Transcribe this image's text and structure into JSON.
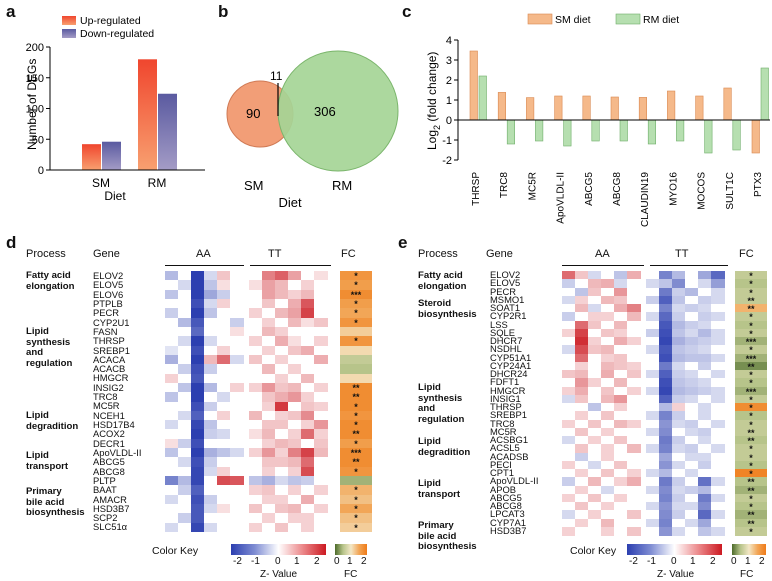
{
  "panel_labels": {
    "a": "a",
    "b": "b",
    "c": "c",
    "d": "d",
    "e": "e"
  },
  "colors": {
    "up": "#e8442a",
    "down": "#6a68a8",
    "sm": "#f5b98a",
    "rm": "#b6dfb0",
    "sm_edge": "#d98850",
    "rm_edge": "#6fae6a",
    "venn_sm": "#f29e77",
    "venn_rm": "#9fd08e"
  },
  "chart_data": [
    {
      "type": "bar",
      "title": "",
      "categories": [
        "SM",
        "RM"
      ],
      "series": [
        {
          "name": "Up-regulated",
          "values": [
            42,
            180
          ]
        },
        {
          "name": "Down-regulated",
          "values": [
            46,
            124
          ]
        }
      ],
      "xlabel": "Diet",
      "ylabel": "Number of DEGs",
      "ylim": [
        0,
        200
      ],
      "yticks": [
        0,
        50,
        100,
        150,
        200
      ],
      "legend": "top-left"
    },
    {
      "type": "bar",
      "title": "",
      "categories": [
        "THRSP",
        "TRC8",
        "MC5R",
        "ApoVLDL-II",
        "ABCG5",
        "ABCG8",
        "CLAUDIN19",
        "MYO16",
        "MOCOS",
        "SULT1C",
        "PTX3"
      ],
      "series": [
        {
          "name": "SM diet",
          "values": [
            3.45,
            1.38,
            1.12,
            1.2,
            1.2,
            1.15,
            1.13,
            1.45,
            1.2,
            1.6,
            -1.65
          ]
        },
        {
          "name": "RM diet",
          "values": [
            2.2,
            -1.2,
            -1.05,
            -1.3,
            -1.05,
            -1.05,
            -1.2,
            -1.05,
            -1.65,
            -1.5,
            2.6
          ]
        }
      ],
      "xlabel": "",
      "ylabel": "Log2 (fold change)",
      "ylim": [
        -2,
        4
      ],
      "yticks": [
        -2,
        -1,
        0,
        1,
        2,
        3,
        4
      ],
      "legend": "top"
    }
  ],
  "a": {
    "ylabel": "Number of DEGs",
    "xlabel": "Diet",
    "legend_up": "Up-regulated",
    "legend_down": "Down-regulated",
    "ticks": [
      "0",
      "50",
      "100",
      "150",
      "200"
    ],
    "cats": [
      "SM",
      "RM"
    ]
  },
  "b": {
    "sm_only": "90",
    "overlap": "11",
    "rm_only": "306",
    "sm_label": "SM",
    "rm_label": "RM",
    "xlabel": "Diet"
  },
  "c": {
    "legend_sm": "SM diet",
    "legend_rm": "RM diet",
    "ylabel_main": "Log",
    "ylabel_sub": "2",
    "ylabel_rest": " (fold change)",
    "ticks": [
      "4",
      "3",
      "2",
      "1",
      "0",
      "-1",
      "-2"
    ],
    "genes": [
      "THRSP",
      "TRC8",
      "MC5R",
      "ApoVLDL-II",
      "ABCG5",
      "ABCG8",
      "CLAUDIN19",
      "MYO16",
      "MOCOS",
      "SULT1C",
      "PTX3"
    ]
  },
  "d": {
    "hdr_process": "Process",
    "hdr_gene": "Gene",
    "hdr_aa": "AA",
    "hdr_tt": "TT",
    "hdr_fc": "FC",
    "genes": [
      "ELOV2",
      "ELOV5",
      "ELOV6",
      "PTPLB",
      "PECR",
      "CYP2U1",
      "FASN",
      "THRSP",
      "SREBP1",
      "ACACA",
      "ACACB",
      "HMGCR",
      "INSIG2",
      "TRC8",
      "MC5R",
      "NCEH1",
      "HSD17B4",
      "ACOX2",
      "DECR1",
      "ApoVLDL-II",
      "ABCG5",
      "ABCG8",
      "PLTP",
      "BAAT",
      "AMACR",
      "HSD3B7",
      "SCP2",
      "SLC51α"
    ],
    "stars": [
      "*",
      "*",
      "***",
      "*",
      "*",
      "*",
      "",
      "*",
      "",
      "",
      "",
      "",
      "**",
      "**",
      "*",
      "*",
      "*",
      "**",
      "*",
      "***",
      "**",
      "*",
      "",
      "*",
      "*",
      "*",
      "*",
      "*"
    ],
    "processes": [
      "Fatty acid elongation",
      "Lipid synthesis and regulation",
      "Lipid degradition",
      "Lipid transport",
      "Primary bile acid biosynthesis"
    ],
    "proc_lines": [
      [
        "Fatty acid",
        "elongation"
      ],
      [
        "Lipid",
        "synthesis",
        "and",
        "regulation"
      ],
      [
        "Lipid",
        "degradition"
      ],
      [
        "Lipid",
        "transport"
      ],
      [
        "Primary",
        "bile acid",
        "biosynthesis"
      ]
    ],
    "colorkey_label": "Color Key",
    "zticks": [
      "-2",
      "-1",
      "0",
      "1",
      "2"
    ],
    "zlabel": "Z- Value",
    "fc_label": "FC",
    "fcticks": [
      "0",
      "1",
      "2"
    ]
  },
  "e": {
    "hdr_process": "Process",
    "hdr_gene": "Gene",
    "hdr_aa": "AA",
    "hdr_tt": "TT",
    "hdr_fc": "FC",
    "genes": [
      "ELOV2",
      "ELOV5",
      "PECR",
      "MSMO1",
      "SOAT1",
      "CYP2R1",
      "LSS",
      "SQLE",
      "DHCR7",
      "NSDHL",
      "CYP51A1",
      "CYP24A1",
      "DHCR24",
      "FDFT1",
      "HMGCR",
      "INSIG1",
      "THRSP",
      "SREBP1",
      "TRC8",
      "MC5R",
      "ACSBG1",
      "ACSL5",
      "ACADSB",
      "PECI",
      "CPT1",
      "ApoVLDL-II",
      "APOB",
      "ABCG5",
      "ABCG8",
      "LPCAT3",
      "CYP7A1",
      "HSD3B7"
    ],
    "stars": [
      "*",
      "*",
      "*",
      "**",
      "**",
      "*",
      "*",
      "*",
      "***",
      "*",
      "***",
      "**",
      "*",
      "*",
      "***",
      "*",
      "*",
      "*",
      "*",
      "**",
      "**",
      "*",
      "*",
      "*",
      "*",
      "**",
      "**",
      "*",
      "*",
      "**",
      "**",
      "*"
    ],
    "processes": [
      "Fatty acid elongation",
      "Steroid biosynthesis",
      "Lipid synthesis and regulation",
      "Lipid degradition",
      "Lipid transport",
      "Primary bile acid biosynthesis"
    ],
    "proc_lines": [
      [
        "Fatty acid",
        "elongation"
      ],
      [
        "Steroid",
        "biosynthesis"
      ],
      [
        "Lipid",
        "synthesis",
        "and",
        "regulation"
      ],
      [
        "Lipid",
        "degradition"
      ],
      [
        "Lipid",
        "transport"
      ],
      [
        "Primary",
        "bile acid",
        "biosynthesis"
      ]
    ],
    "colorkey_label": "Color Key",
    "zticks": [
      "-2",
      "-1",
      "0",
      "1",
      "2"
    ],
    "zlabel": "Z- Value",
    "fc_label": "FC",
    "fcticks": [
      "0",
      "1",
      "2"
    ]
  },
  "heatmap_d": {
    "aa": [
      [
        -0.6,
        0,
        -2,
        -0.3,
        0.4,
        0
      ],
      [
        0,
        -0.3,
        -2,
        -0.5,
        0.2,
        0
      ],
      [
        -0.5,
        0,
        -2,
        -0.8,
        -0.4,
        0
      ],
      [
        0,
        0,
        -1.8,
        -0.3,
        0.3,
        0
      ],
      [
        -0.4,
        0,
        -2,
        -0.5,
        0,
        0
      ],
      [
        0,
        -0.6,
        -1.7,
        0,
        0,
        -0.4
      ],
      [
        0,
        0,
        -1.5,
        0,
        0,
        0.2
      ],
      [
        0,
        -0.3,
        -2,
        -0.3,
        0,
        0
      ],
      [
        -0.2,
        0,
        -1.8,
        0,
        0.3,
        0
      ],
      [
        -0.7,
        0,
        -2,
        0.5,
        1.2,
        -0.3
      ],
      [
        0,
        -0.4,
        -1.8,
        -0.4,
        0,
        0
      ],
      [
        0.3,
        0,
        -1.7,
        0,
        0,
        0
      ],
      [
        0,
        -0.5,
        -2,
        -0.6,
        0,
        0.3
      ],
      [
        -0.5,
        0,
        -2,
        0,
        -0.3,
        0
      ],
      [
        0,
        0,
        -1.8,
        -0.4,
        0,
        0
      ],
      [
        0,
        -0.3,
        -1.6,
        0,
        0.3,
        0
      ],
      [
        -0.3,
        0,
        -1.9,
        -0.5,
        0,
        0
      ],
      [
        0,
        0,
        -2,
        -0.4,
        -0.3,
        0
      ],
      [
        0.2,
        -0.4,
        -1.8,
        0,
        0,
        0
      ],
      [
        -0.5,
        0,
        -2,
        -0.7,
        -0.5,
        -0.3
      ],
      [
        0,
        -0.3,
        -1.8,
        -0.4,
        0,
        0
      ],
      [
        0,
        0,
        -1.9,
        -0.3,
        0.3,
        0
      ],
      [
        -1.2,
        -0.6,
        -1.9,
        0,
        1.5,
        1.4
      ],
      [
        0,
        -0.4,
        -1.6,
        0,
        0,
        0
      ],
      [
        -0.3,
        0,
        -1.8,
        -0.4,
        0,
        0
      ],
      [
        0,
        0,
        -1.7,
        -0.3,
        0.2,
        0
      ],
      [
        0,
        -0.4,
        -1.7,
        0,
        0,
        0
      ],
      [
        -0.3,
        0,
        -1.9,
        -0.3,
        0,
        0
      ]
    ],
    "tt": [
      [
        0,
        1,
        1.3,
        0.7,
        0,
        0.2
      ],
      [
        0.2,
        0.7,
        0.5,
        0,
        0.3,
        0
      ],
      [
        0,
        0.7,
        0.5,
        0.3,
        0.5,
        0
      ],
      [
        0,
        0.4,
        0,
        0.6,
        1.4,
        0
      ],
      [
        0.3,
        0,
        0.5,
        0.7,
        1.6,
        0
      ],
      [
        0,
        0.3,
        0,
        0.5,
        0.2,
        0.4
      ],
      [
        0,
        0.5,
        0.3,
        0,
        0,
        0
      ],
      [
        0.3,
        0,
        0.6,
        0.2,
        0,
        0.3
      ],
      [
        0,
        0.3,
        0,
        0.4,
        0.6,
        0
      ],
      [
        0.4,
        0,
        0.3,
        0,
        0,
        0.6
      ],
      [
        0,
        0.5,
        0,
        0.3,
        0,
        0
      ],
      [
        0,
        0,
        0.3,
        0,
        0.5,
        0
      ],
      [
        0.3,
        0.8,
        0.4,
        0.5,
        0,
        0.3
      ],
      [
        0,
        0.4,
        0.6,
        0.8,
        0.3,
        0
      ],
      [
        0,
        0.3,
        1.7,
        0,
        0.4,
        0.3
      ],
      [
        0.5,
        0,
        0.3,
        0.4,
        0.9,
        0
      ],
      [
        0,
        0.4,
        0.4,
        0,
        0.3,
        0.8
      ],
      [
        0.2,
        0.5,
        0,
        0.3,
        1.2,
        0.3
      ],
      [
        0,
        0.3,
        0.5,
        0.4,
        0,
        0.4
      ],
      [
        0.3,
        0.8,
        0.3,
        1,
        1.6,
        0.5
      ],
      [
        0,
        0.4,
        0.4,
        0.5,
        1.2,
        0
      ],
      [
        0,
        0.3,
        0,
        0.3,
        1.5,
        0
      ],
      [
        -0.5,
        -0.7,
        -0.3,
        -0.5,
        -0.4,
        0
      ],
      [
        0.3,
        0.4,
        0,
        0.3,
        0,
        0.3
      ],
      [
        0,
        0.3,
        0.3,
        0,
        0.6,
        0
      ],
      [
        0.4,
        0,
        0.4,
        0.5,
        0,
        0.3
      ],
      [
        0,
        0.3,
        0,
        0.3,
        0.3,
        0
      ],
      [
        0.3,
        0,
        0.4,
        0,
        0.3,
        0
      ]
    ],
    "fc": [
      1.7,
      1.6,
      1.8,
      1.6,
      1.5,
      1.7,
      1.2,
      1.7,
      1.1,
      0.6,
      0.5,
      1.1,
      1.8,
      1.8,
      1.8,
      1.7,
      1.8,
      1.8,
      1.6,
      1.8,
      1.8,
      1.7,
      0.4,
      1.4,
      1.3,
      1.5,
      1.3,
      1.2
    ]
  },
  "heatmap_e": {
    "aa": [
      [
        1.2,
        0.4,
        -0.3,
        0,
        -0.5,
        0.6
      ],
      [
        -0.4,
        0,
        0.5,
        0.6,
        -0.3,
        0
      ],
      [
        0,
        -0.5,
        0.4,
        0,
        0.8,
        0
      ],
      [
        -0.3,
        0.3,
        0,
        0.5,
        0.4,
        0
      ],
      [
        0,
        0.5,
        -0.3,
        0,
        0.6,
        1
      ],
      [
        -0.4,
        0,
        0.3,
        0.3,
        0,
        0.5
      ],
      [
        0,
        1.2,
        0.4,
        0,
        0.5,
        0
      ],
      [
        0.3,
        1.6,
        0,
        0.4,
        0.3,
        0
      ],
      [
        0,
        1.8,
        0.3,
        0,
        0.6,
        0.3
      ],
      [
        -0.3,
        1.5,
        0.4,
        0.5,
        0,
        0
      ],
      [
        0,
        1.2,
        0,
        0.3,
        0.4,
        0
      ],
      [
        0,
        0.3,
        0,
        0.5,
        0.4,
        0.3
      ],
      [
        0.4,
        0.5,
        0,
        0.6,
        0,
        0.4
      ],
      [
        0,
        0.8,
        0.3,
        0,
        0.5,
        0
      ],
      [
        0.3,
        0.6,
        0,
        0.4,
        0,
        0.3
      ],
      [
        -0.3,
        0.4,
        0,
        0.5,
        0.8,
        0
      ],
      [
        0,
        0,
        -0.5,
        0,
        0.3,
        0
      ],
      [
        0,
        0.3,
        0,
        0.4,
        0,
        0
      ],
      [
        0.3,
        0,
        0.4,
        0,
        0.5,
        0.3
      ],
      [
        0,
        0.4,
        0,
        0.3,
        0,
        0
      ],
      [
        -0.3,
        0,
        0.3,
        0,
        0.4,
        0
      ],
      [
        0,
        0.4,
        0,
        0.3,
        0,
        0.5
      ],
      [
        0,
        -0.4,
        0,
        0.3,
        0,
        0
      ],
      [
        0.3,
        0,
        -0.3,
        0,
        0.4,
        0
      ],
      [
        0,
        0.3,
        0,
        0.4,
        0,
        0.3
      ],
      [
        -0.4,
        0,
        0.5,
        0,
        0.3,
        0.6
      ],
      [
        0,
        0.3,
        0,
        -0.3,
        0,
        0
      ],
      [
        0.3,
        0,
        0.4,
        0,
        0.3,
        0
      ],
      [
        0,
        0.4,
        0,
        0.3,
        0,
        0
      ],
      [
        -0.3,
        0,
        0.3,
        0,
        0,
        0.4
      ],
      [
        0,
        0.3,
        0,
        0.5,
        0,
        0
      ],
      [
        0.3,
        0,
        0,
        0.3,
        0,
        0.4
      ]
    ],
    "tt": [
      [
        0,
        -1.2,
        -0.6,
        0,
        -0.8,
        -1.5
      ],
      [
        -0.3,
        -0.5,
        -1.1,
        0,
        -0.3,
        -0.9
      ],
      [
        0,
        -1.3,
        -0.4,
        -0.6,
        0,
        -0.3
      ],
      [
        -0.4,
        -1.6,
        -0.5,
        0,
        -0.4,
        -0.3
      ],
      [
        0,
        -1.2,
        -0.3,
        -0.4,
        -0.3,
        0
      ],
      [
        -0.3,
        -1.5,
        -0.4,
        0,
        -0.4,
        -0.3
      ],
      [
        0,
        -1.7,
        -0.6,
        -0.4,
        -0.3,
        0
      ],
      [
        -0.4,
        -1.8,
        -0.5,
        -0.3,
        -0.6,
        -0.3
      ],
      [
        0,
        -1.9,
        -0.7,
        -0.5,
        -0.4,
        -0.3
      ],
      [
        -0.3,
        -1.7,
        -0.5,
        -0.4,
        -0.3,
        0
      ],
      [
        0,
        -1.8,
        -0.6,
        -0.5,
        -0.5,
        -0.3
      ],
      [
        0,
        -1.3,
        -0.3,
        0,
        -0.4,
        0
      ],
      [
        -0.3,
        -1.6,
        -0.4,
        -0.3,
        0,
        -0.3
      ],
      [
        0,
        -1.8,
        -0.5,
        -0.4,
        -0.3,
        0
      ],
      [
        -0.3,
        -1.9,
        -0.6,
        -0.5,
        -0.4,
        -0.3
      ],
      [
        0,
        -1.6,
        -0.4,
        -0.3,
        0,
        -0.3
      ],
      [
        0,
        -0.6,
        0.3,
        0,
        -0.3,
        0
      ],
      [
        -0.3,
        -1.2,
        -0.4,
        0,
        -0.3,
        0
      ],
      [
        0,
        -1,
        -0.3,
        -0.4,
        0,
        -0.3
      ],
      [
        -0.3,
        -1.1,
        0,
        -0.3,
        -0.4,
        0
      ],
      [
        0,
        -1.3,
        -0.4,
        0,
        -0.3,
        0
      ],
      [
        -0.3,
        -1.2,
        -0.3,
        -0.4,
        0,
        -0.3
      ],
      [
        0,
        -0.8,
        0,
        -0.3,
        -0.3,
        0
      ],
      [
        0,
        -1,
        -0.3,
        0,
        -0.4,
        0
      ],
      [
        -0.3,
        -0.6,
        0,
        -0.3,
        0,
        0
      ],
      [
        0,
        -1.3,
        -0.4,
        0,
        -1.4,
        -0.3
      ],
      [
        -0.3,
        -1.1,
        -0.3,
        -0.4,
        -0.6,
        0
      ],
      [
        0,
        -1.2,
        -0.4,
        0,
        -1.3,
        -0.3
      ],
      [
        -0.3,
        -1,
        -0.3,
        -0.3,
        -1.1,
        0
      ],
      [
        0,
        -1.1,
        -0.4,
        0,
        -1.5,
        -0.3
      ],
      [
        -0.3,
        -1.2,
        0,
        -0.3,
        -0.8,
        0
      ],
      [
        0,
        -1,
        -0.3,
        0,
        -0.5,
        -0.3
      ]
    ],
    "fc": [
      0.6,
      0.5,
      0.6,
      0.6,
      1.4,
      0.6,
      0.5,
      0.6,
      0.4,
      0.6,
      0.4,
      0.2,
      0.6,
      0.5,
      0.4,
      0.6,
      1.8,
      0.5,
      0.6,
      0.6,
      0.5,
      0.6,
      0.6,
      0.5,
      1.9,
      0.5,
      0.4,
      0.6,
      0.5,
      0.4,
      0.5,
      0.6
    ]
  }
}
